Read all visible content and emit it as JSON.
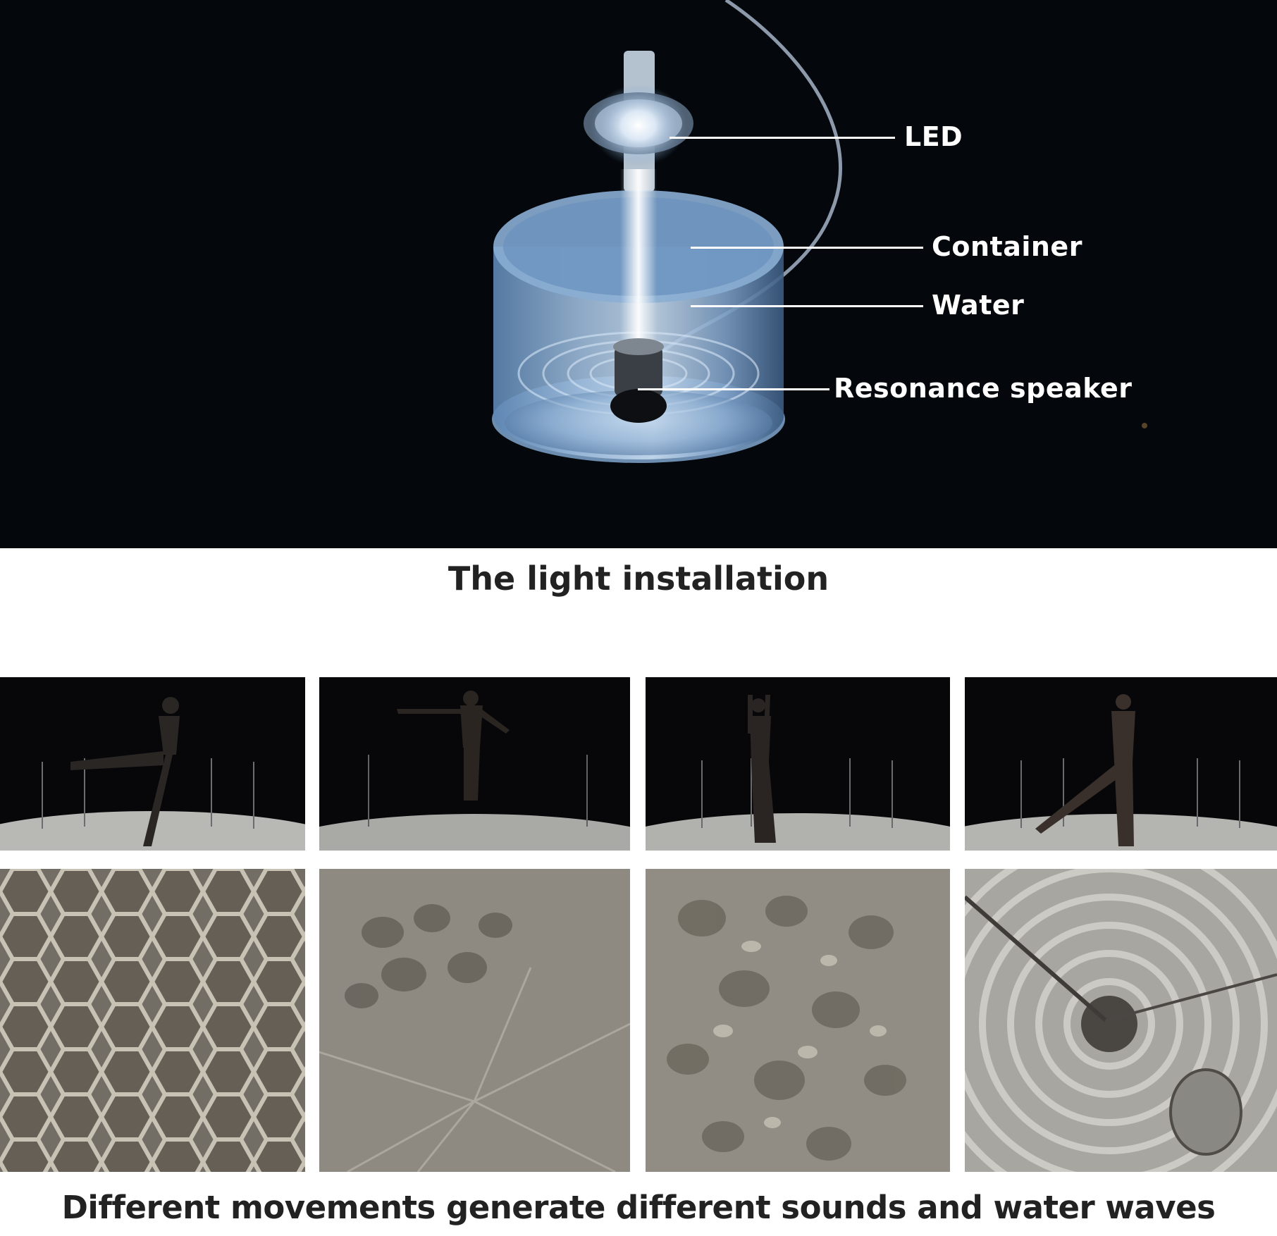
{
  "hero": {
    "labels": {
      "led": "LED",
      "container": "Container",
      "water": "Water",
      "speaker": "Resonance speaker"
    },
    "caption": "The light installation"
  },
  "performance_frames": [
    {
      "pose": "leg raised sideways"
    },
    {
      "pose": "jump with arms spread"
    },
    {
      "pose": "arms raised overhead"
    },
    {
      "pose": "leg extended back"
    }
  ],
  "water_frames": [
    {
      "pattern": "caustic cells"
    },
    {
      "pattern": "radial blur"
    },
    {
      "pattern": "scattered ripples"
    },
    {
      "pattern": "concentric rings"
    }
  ],
  "bottom_caption": "Different movements generate different sounds and water waves"
}
